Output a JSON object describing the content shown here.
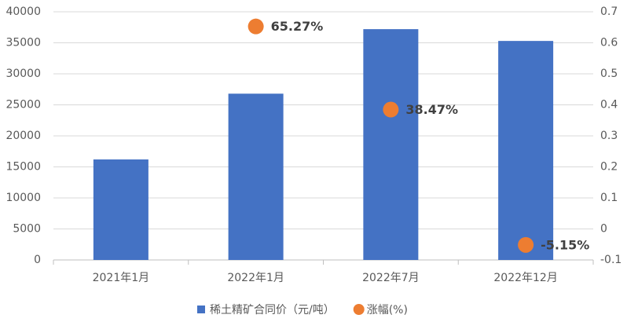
{
  "chart_data": {
    "type": "bar",
    "categories": [
      "2021年1月",
      "2022年1月",
      "2022年7月",
      "2022年12月"
    ],
    "series": [
      {
        "name": "稀土精矿合同价（元/吨）",
        "type": "bar",
        "color": "#4472c4",
        "axis": "y",
        "values": [
          16200,
          26800,
          37200,
          35300
        ]
      },
      {
        "name": "涨幅(%)",
        "type": "scatter",
        "color": "#ed7d31",
        "axis": "y2",
        "values": [
          null,
          0.6527,
          0.3847,
          -0.0515
        ],
        "value_labels": [
          null,
          "65.27%",
          "38.47%",
          "-5.15%"
        ]
      }
    ],
    "ylim": [
      0,
      40000
    ],
    "yticks": [
      0,
      5000,
      10000,
      15000,
      20000,
      25000,
      30000,
      35000,
      40000
    ],
    "y2lim": [
      -0.1,
      0.7
    ],
    "y2ticks": [
      -0.1,
      0,
      0.1,
      0.2,
      0.3,
      0.4,
      0.5,
      0.6,
      0.7
    ],
    "grid": true,
    "legend": "bottom"
  }
}
